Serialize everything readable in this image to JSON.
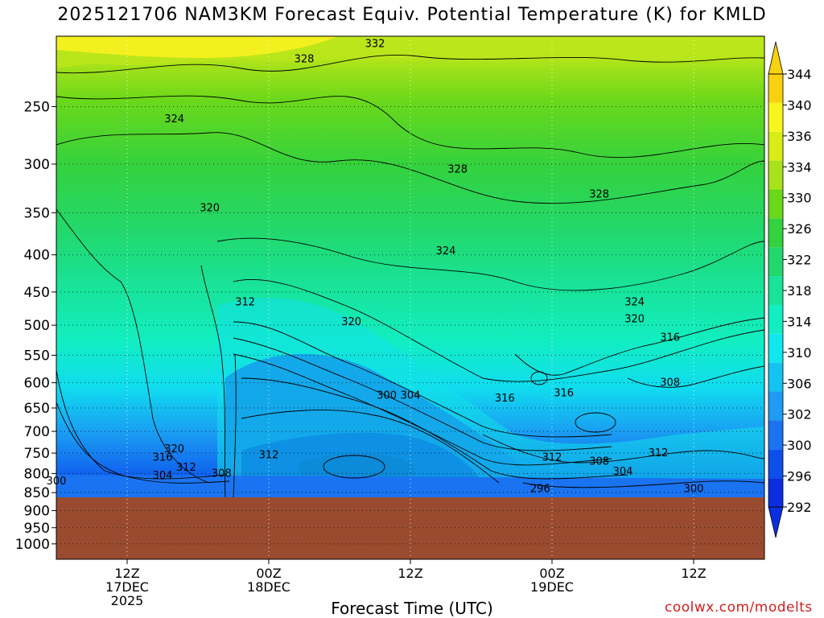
{
  "title": "2025121706 NAM3KM Forecast Equiv. Potential Temperature (K) for KMLD",
  "credit": "coolwx.com/modelts",
  "colors": {
    "terrain": "#9a4b2f",
    "scale": [
      "#0a2ee0",
      "#0d4fea",
      "#1a73f0",
      "#1e9bf2",
      "#14c3f0",
      "#10e8f0",
      "#12eec2",
      "#18e398",
      "#22d86c",
      "#34d23e",
      "#6ad81a",
      "#a8e21a",
      "#d8ec16",
      "#f6f61e",
      "#f8d210"
    ]
  },
  "chart_data": {
    "type": "heatmap",
    "title": "2025121706 NAM3KM Forecast Equiv. Potential Temperature (K) for KMLD",
    "xlabel": "Forecast Time (UTC)",
    "ylabel": "",
    "y_scale": "log-pressure",
    "y_inverted": true,
    "ylim": [
      1050,
      200
    ],
    "y_ticks": [
      250,
      300,
      350,
      400,
      450,
      500,
      550,
      600,
      650,
      700,
      750,
      800,
      850,
      900,
      950,
      1000
    ],
    "x_ticks": [
      {
        "time": "2025-12-17 12Z",
        "label": [
          "12Z",
          "17DEC",
          "2025"
        ]
      },
      {
        "time": "2025-12-18 00Z",
        "label": [
          "00Z",
          "18DEC"
        ]
      },
      {
        "time": "2025-12-18 12Z",
        "label": [
          "12Z"
        ]
      },
      {
        "time": "2025-12-19 00Z",
        "label": [
          "00Z",
          "19DEC"
        ]
      },
      {
        "time": "2025-12-19 12Z",
        "label": [
          "12Z"
        ]
      }
    ],
    "grid": true,
    "colorbar": {
      "levels": [
        292,
        294,
        296,
        298,
        300,
        302,
        304,
        306,
        308,
        310,
        312,
        314,
        316,
        318,
        320,
        322,
        324,
        326,
        328,
        330,
        332,
        334,
        336,
        338,
        340,
        342,
        344
      ],
      "labels": [
        292,
        296,
        300,
        302,
        306,
        310,
        314,
        318,
        322,
        326,
        330,
        334,
        336,
        340,
        344
      ],
      "units": "K",
      "placement": "right"
    },
    "contour_labels": [
      {
        "value": 332,
        "time": "2025-12-18 09Z",
        "pressure": 205
      },
      {
        "value": 328,
        "time": "2025-12-18 03Z",
        "pressure": 215
      },
      {
        "value": 324,
        "time": "2025-12-17 16Z",
        "pressure": 260
      },
      {
        "value": 328,
        "time": "2025-12-18 16Z",
        "pressure": 305
      },
      {
        "value": 328,
        "time": "2025-12-19 04Z",
        "pressure": 330
      },
      {
        "value": 320,
        "time": "2025-12-17 19Z",
        "pressure": 345
      },
      {
        "value": 324,
        "time": "2025-12-18 15Z",
        "pressure": 395
      },
      {
        "value": 312,
        "time": "2025-12-17 22Z",
        "pressure": 465
      },
      {
        "value": 324,
        "time": "2025-12-19 07Z",
        "pressure": 465
      },
      {
        "value": 320,
        "time": "2025-12-18 07Z",
        "pressure": 495
      },
      {
        "value": 320,
        "time": "2025-12-19 07Z",
        "pressure": 490
      },
      {
        "value": 316,
        "time": "2025-12-19 10Z",
        "pressure": 520
      },
      {
        "value": 300,
        "time": "2025-12-18 10Z",
        "pressure": 625
      },
      {
        "value": 304,
        "time": "2025-12-18 12Z",
        "pressure": 625
      },
      {
        "value": 316,
        "time": "2025-12-18 20Z",
        "pressure": 630
      },
      {
        "value": 316,
        "time": "2025-12-19 01Z",
        "pressure": 620
      },
      {
        "value": 308,
        "time": "2025-12-19 10Z",
        "pressure": 600
      },
      {
        "value": 320,
        "time": "2025-12-17 16Z",
        "pressure": 740
      },
      {
        "value": 316,
        "time": "2025-12-17 15Z",
        "pressure": 760
      },
      {
        "value": 312,
        "time": "2025-12-18 00Z",
        "pressure": 755
      },
      {
        "value": 312,
        "time": "2025-12-17 17Z",
        "pressure": 785
      },
      {
        "value": 308,
        "time": "2025-12-17 20Z",
        "pressure": 800
      },
      {
        "value": 304,
        "time": "2025-12-17 15Z",
        "pressure": 805
      },
      {
        "value": 300,
        "time": "2025-12-17 06Z",
        "pressure": 820
      },
      {
        "value": 312,
        "time": "2025-12-19 00Z",
        "pressure": 760
      },
      {
        "value": 308,
        "time": "2025-12-19 04Z",
        "pressure": 770
      },
      {
        "value": 312,
        "time": "2025-12-19 09Z",
        "pressure": 750
      },
      {
        "value": 304,
        "time": "2025-12-19 06Z",
        "pressure": 795
      },
      {
        "value": 296,
        "time": "2025-12-18 23Z",
        "pressure": 840
      },
      {
        "value": 300,
        "time": "2025-12-19 12Z",
        "pressure": 840
      }
    ],
    "terrain_top_pressure": 865
  }
}
